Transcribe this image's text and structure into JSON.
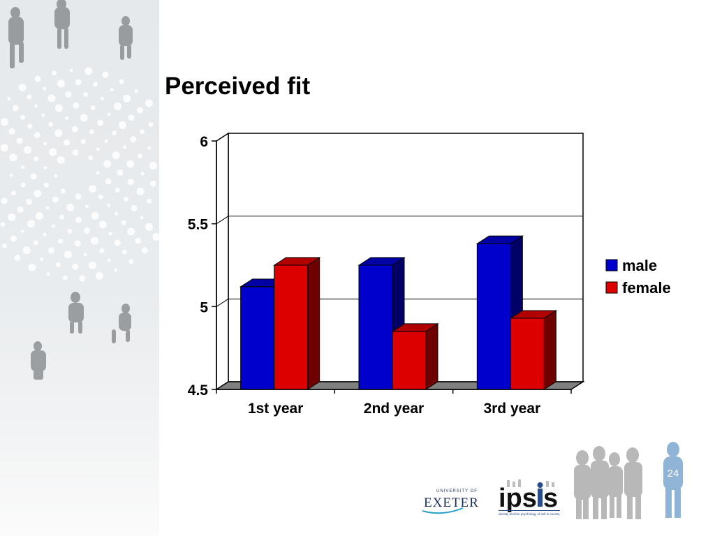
{
  "slide": {
    "title": "Perceived fit",
    "page_number": "24"
  },
  "logos": {
    "exeter_text": "EXETER",
    "exeter_small": "UNIVERSITY OF",
    "ipsis_text": "ipsis",
    "ipsis_tagline": "identity and the psychology of self in society"
  },
  "colors": {
    "male": "#0000cc",
    "female": "#dd0000"
  },
  "chart_data": {
    "type": "bar",
    "title": "",
    "xlabel": "",
    "ylabel": "",
    "categories": [
      "1st year",
      "2nd year",
      "3rd year"
    ],
    "series": [
      {
        "name": "male",
        "values": [
          5.12,
          5.25,
          5.38
        ]
      },
      {
        "name": "female",
        "values": [
          5.25,
          4.85,
          4.93
        ]
      }
    ],
    "ylim": [
      4.5,
      6
    ],
    "yticks": [
      "4.5",
      "5",
      "5.5",
      "6"
    ],
    "grid": true,
    "legend": "right",
    "style": "3d"
  }
}
